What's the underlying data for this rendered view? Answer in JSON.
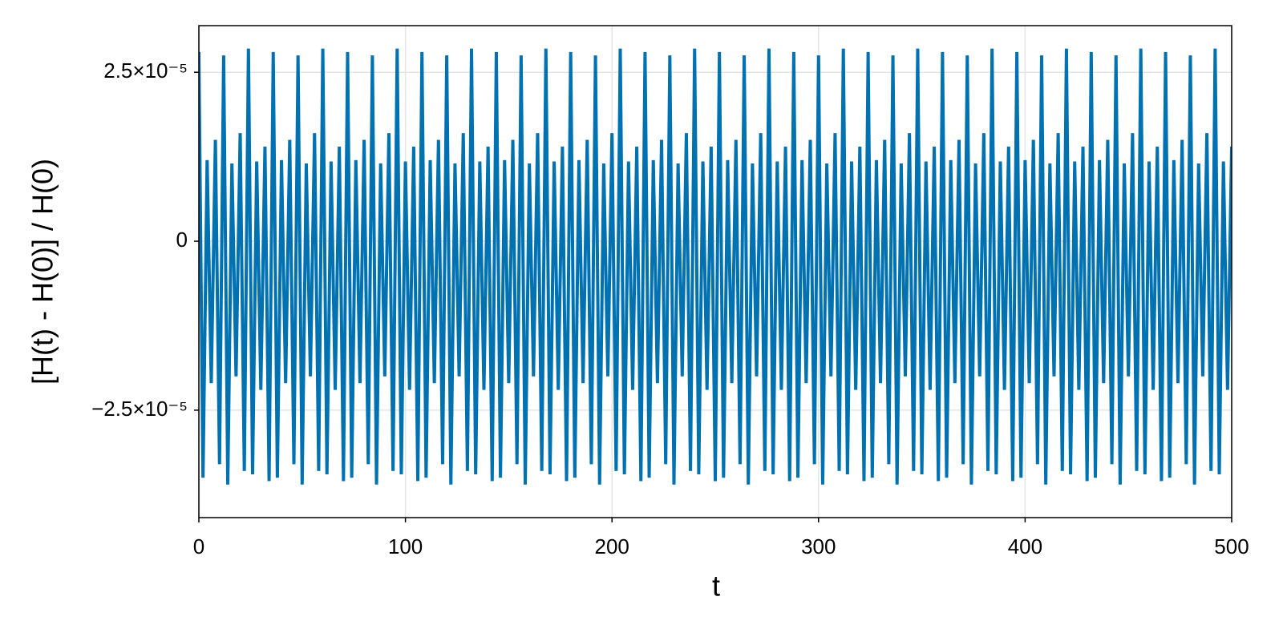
{
  "chart_data": {
    "type": "line",
    "xlabel": "t",
    "ylabel": "[H(t) - H(0)] / H(0)",
    "xlim": [
      0,
      500
    ],
    "ylim": [
      -4.09e-05,
      3.19e-05
    ],
    "xticks": [
      0,
      100,
      200,
      300,
      400,
      500
    ],
    "yticks": [
      {
        "value": -2.5e-05,
        "label": "−2.5×10⁻⁵"
      },
      0,
      {
        "value": 2.5e-05,
        "label": "2.5×10⁻⁵"
      }
    ],
    "grid": true,
    "x": [
      0,
      2,
      4,
      6,
      8,
      10,
      12,
      14,
      16,
      18,
      20,
      22,
      24,
      26,
      28,
      30,
      32,
      34,
      36,
      38,
      40,
      42,
      44,
      46,
      48,
      50,
      52,
      54,
      56,
      58,
      60,
      62,
      64,
      66,
      68,
      70,
      72,
      74,
      76,
      78,
      80,
      82,
      84,
      86,
      88,
      90,
      92,
      94,
      96,
      98,
      100,
      102,
      104,
      106,
      108,
      110,
      112,
      114,
      116,
      118,
      120,
      122,
      124,
      126,
      128,
      130,
      132,
      134,
      136,
      138,
      140,
      142,
      144,
      146,
      148,
      150,
      152,
      154,
      156,
      158,
      160,
      162,
      164,
      166,
      168,
      170,
      172,
      174,
      176,
      178,
      180,
      182,
      184,
      186,
      188,
      190,
      192,
      194,
      196,
      198,
      200,
      202,
      204,
      206,
      208,
      210,
      212,
      214,
      216,
      218,
      220,
      222,
      224,
      226,
      228,
      230,
      232,
      234,
      236,
      238,
      240,
      242,
      244,
      246,
      248,
      250,
      252,
      254,
      256,
      258,
      260,
      262,
      264,
      266,
      268,
      270,
      272,
      274,
      276,
      278,
      280,
      282,
      284,
      286,
      288,
      290,
      292,
      294,
      296,
      298,
      300,
      302,
      304,
      306,
      308,
      310,
      312,
      314,
      316,
      318,
      320,
      322,
      324,
      326,
      328,
      330,
      332,
      334,
      336,
      338,
      340,
      342,
      344,
      346,
      348,
      350,
      352,
      354,
      356,
      358,
      360,
      362,
      364,
      366,
      368,
      370,
      372,
      374,
      376,
      378,
      380,
      382,
      384,
      386,
      388,
      390,
      392,
      394,
      396,
      398,
      400,
      402,
      404,
      406,
      408,
      410,
      412,
      414,
      416,
      418,
      420,
      422,
      424,
      426,
      428,
      430,
      432,
      434,
      436,
      438,
      440,
      442,
      444,
      446,
      448,
      450,
      452,
      454,
      456,
      458,
      460,
      462,
      464,
      466,
      468,
      470,
      472,
      474,
      476,
      478,
      480,
      482,
      484,
      486,
      488,
      490,
      492,
      494,
      496,
      498,
      500
    ],
    "series": [
      {
        "color": "#0072b2",
        "values": [
          2.8e-05,
          -3.5e-05,
          1.2e-05,
          -2.1e-05,
          1.5e-05,
          -3.3e-05,
          2.75e-05,
          -3.6e-05,
          1.15e-05,
          -2e-05,
          1.6e-05,
          -3.4e-05,
          2.85e-05,
          -3.45e-05,
          1.18e-05,
          -2.2e-05,
          1.4e-05,
          -3.55e-05,
          2.8e-05,
          -3.5e-05,
          1.2e-05,
          -2.1e-05,
          1.5e-05,
          -3.3e-05,
          2.75e-05,
          -3.6e-05,
          1.15e-05,
          -2e-05,
          1.6e-05,
          -3.4e-05,
          2.85e-05,
          -3.45e-05,
          1.18e-05,
          -2.2e-05,
          1.4e-05,
          -3.55e-05,
          2.8e-05,
          -3.5e-05,
          1.2e-05,
          -2.1e-05,
          1.5e-05,
          -3.3e-05,
          2.75e-05,
          -3.6e-05,
          1.15e-05,
          -2e-05,
          1.6e-05,
          -3.4e-05,
          2.85e-05,
          -3.45e-05,
          1.18e-05,
          -2.2e-05,
          1.4e-05,
          -3.55e-05,
          2.8e-05,
          -3.5e-05,
          1.2e-05,
          -2.1e-05,
          1.5e-05,
          -3.3e-05,
          2.75e-05,
          -3.6e-05,
          1.15e-05,
          -2e-05,
          1.6e-05,
          -3.4e-05,
          2.85e-05,
          -3.45e-05,
          1.18e-05,
          -2.2e-05,
          1.4e-05,
          -3.55e-05,
          2.8e-05,
          -3.5e-05,
          1.2e-05,
          -2.1e-05,
          1.5e-05,
          -3.3e-05,
          2.75e-05,
          -3.6e-05,
          1.15e-05,
          -2e-05,
          1.6e-05,
          -3.4e-05,
          2.85e-05,
          -3.45e-05,
          1.18e-05,
          -2.2e-05,
          1.4e-05,
          -3.55e-05,
          2.8e-05,
          -3.5e-05,
          1.2e-05,
          -2.1e-05,
          1.5e-05,
          -3.3e-05,
          2.75e-05,
          -3.6e-05,
          1.15e-05,
          -2e-05,
          1.6e-05,
          -3.4e-05,
          2.85e-05,
          -3.45e-05,
          1.18e-05,
          -2.2e-05,
          1.4e-05,
          -3.55e-05,
          2.8e-05,
          -3.5e-05,
          1.2e-05,
          -2.1e-05,
          1.5e-05,
          -3.3e-05,
          2.75e-05,
          -3.6e-05,
          1.15e-05,
          -2e-05,
          1.6e-05,
          -3.4e-05,
          2.85e-05,
          -3.45e-05,
          1.18e-05,
          -2.2e-05,
          1.4e-05,
          -3.55e-05,
          2.8e-05,
          -3.5e-05,
          1.2e-05,
          -2.1e-05,
          1.5e-05,
          -3.3e-05,
          2.75e-05,
          -3.6e-05,
          1.15e-05,
          -2e-05,
          1.6e-05,
          -3.4e-05,
          2.85e-05,
          -3.45e-05,
          1.18e-05,
          -2.2e-05,
          1.4e-05,
          -3.55e-05,
          2.8e-05,
          -3.5e-05,
          1.2e-05,
          -2.1e-05,
          1.5e-05,
          -3.3e-05,
          2.75e-05,
          -3.6e-05,
          1.15e-05,
          -2e-05,
          1.6e-05,
          -3.4e-05,
          2.85e-05,
          -3.45e-05,
          1.18e-05,
          -2.2e-05,
          1.4e-05,
          -3.55e-05,
          2.8e-05,
          -3.5e-05,
          1.2e-05,
          -2.1e-05,
          1.5e-05,
          -3.3e-05,
          2.75e-05,
          -3.6e-05,
          1.15e-05,
          -2e-05,
          1.6e-05,
          -3.4e-05,
          2.85e-05,
          -3.45e-05,
          1.18e-05,
          -2.2e-05,
          1.4e-05,
          -3.55e-05,
          2.8e-05,
          -3.5e-05,
          1.2e-05,
          -2.1e-05,
          1.5e-05,
          -3.3e-05,
          2.75e-05,
          -3.6e-05,
          1.15e-05,
          -2e-05,
          1.6e-05,
          -3.4e-05,
          2.85e-05,
          -3.45e-05,
          1.18e-05,
          -2.2e-05,
          1.4e-05,
          -3.55e-05,
          2.8e-05,
          -3.5e-05,
          1.2e-05,
          -2.1e-05,
          1.5e-05,
          -3.3e-05,
          2.75e-05,
          -3.6e-05,
          1.15e-05,
          -2e-05,
          1.6e-05,
          -3.4e-05,
          2.85e-05,
          -3.45e-05,
          1.18e-05,
          -2.2e-05,
          1.4e-05,
          -3.55e-05,
          2.8e-05,
          -3.5e-05,
          1.2e-05,
          -2.1e-05,
          1.5e-05,
          -3.3e-05,
          2.75e-05,
          -3.6e-05,
          1.15e-05,
          -2e-05,
          1.6e-05,
          -3.4e-05,
          2.85e-05,
          -3.45e-05,
          1.18e-05,
          -2.2e-05,
          1.4e-05,
          -3.55e-05,
          2.8e-05,
          -3.5e-05,
          1.2e-05,
          -2.1e-05,
          1.5e-05,
          -3.3e-05,
          2.75e-05,
          -3.6e-05,
          1.15e-05,
          -2e-05,
          1.6e-05,
          -3.4e-05,
          2.85e-05,
          -3.45e-05,
          1.18e-05,
          -2.2e-05,
          1.4e-05
        ]
      }
    ]
  }
}
